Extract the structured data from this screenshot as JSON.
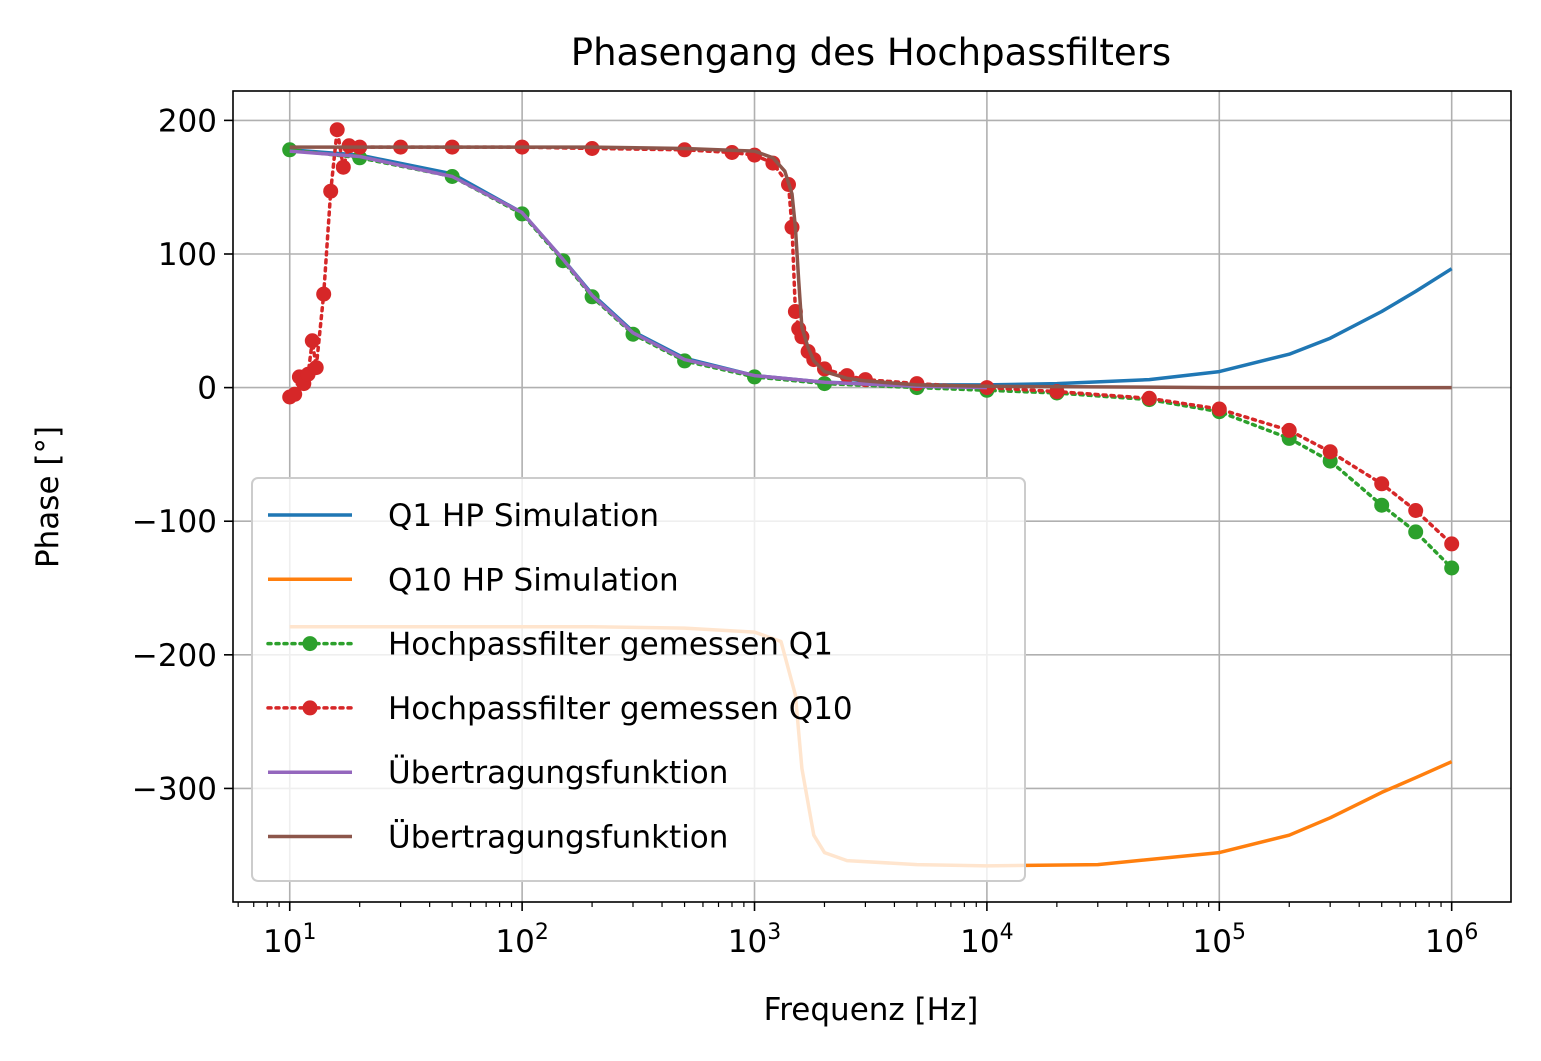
{
  "chart_data": {
    "type": "line",
    "title": "Phasengang des Hochpassfilters",
    "xlabel": "Frequenz [Hz]",
    "ylabel": "Phase [°]",
    "xscale": "log",
    "xlim": [
      5.7,
      1800000
    ],
    "ylim": [
      -385,
      222
    ],
    "xticks": [
      {
        "value": 10,
        "base": "10",
        "exp": "1"
      },
      {
        "value": 100,
        "base": "10",
        "exp": "2"
      },
      {
        "value": 1000,
        "base": "10",
        "exp": "3"
      },
      {
        "value": 10000,
        "base": "10",
        "exp": "4"
      },
      {
        "value": 100000,
        "base": "10",
        "exp": "5"
      },
      {
        "value": 1000000,
        "base": "10",
        "exp": "6"
      }
    ],
    "yticks": [
      {
        "value": 200,
        "label": "200"
      },
      {
        "value": 100,
        "label": "100"
      },
      {
        "value": 0,
        "label": "0"
      },
      {
        "value": -100,
        "label": "−100"
      },
      {
        "value": -200,
        "label": "−200"
      },
      {
        "value": -300,
        "label": "−300"
      }
    ],
    "grid": true,
    "legend_position": "lower-left",
    "series": [
      {
        "name": "Q1 HP Simulation",
        "color": "#1f77b4",
        "style": "solid",
        "x": [
          10,
          20,
          50,
          100,
          150,
          200,
          300,
          500,
          1000,
          2000,
          5000,
          10000,
          20000,
          50000,
          100000,
          200000,
          300000,
          500000,
          700000,
          1000000
        ],
        "y": [
          178,
          174,
          160,
          131,
          96,
          70,
          42,
          22,
          9,
          4,
          2,
          2,
          3,
          6,
          12,
          25,
          37,
          57,
          72,
          89
        ]
      },
      {
        "name": "Q10 HP Simulation",
        "color": "#ff7f0e",
        "style": "solid",
        "x": [
          10,
          50,
          200,
          500,
          1000,
          1300,
          1500,
          1600,
          1800,
          2000,
          2500,
          5000,
          10000,
          30000,
          100000,
          200000,
          300000,
          500000,
          700000,
          1000000
        ],
        "y": [
          -179,
          -179,
          -179,
          -180,
          -183,
          -190,
          -230,
          -285,
          -335,
          -348,
          -354,
          -357,
          -358,
          -357,
          -348,
          -335,
          -322,
          -303,
          -292,
          -280
        ]
      },
      {
        "name": "Hochpassfilter gemessen Q1",
        "color": "#2ca02c",
        "style": "dotted-markers",
        "x": [
          10,
          20,
          50,
          100,
          150,
          200,
          300,
          500,
          1000,
          2000,
          5000,
          10000,
          20000,
          50000,
          100000,
          200000,
          300000,
          500000,
          700000,
          1000000
        ],
        "y": [
          178,
          172,
          158,
          130,
          95,
          68,
          40,
          20,
          8,
          3,
          0,
          -2,
          -4,
          -9,
          -18,
          -38,
          -55,
          -88,
          -108,
          -135
        ]
      },
      {
        "name": "Hochpassfilter gemessen Q10",
        "color": "#d62728",
        "style": "dotted-markers",
        "x": [
          10,
          10.5,
          11,
          11.5,
          12,
          12.5,
          13,
          14,
          15,
          16,
          17,
          18,
          20,
          30,
          50,
          100,
          200,
          500,
          800,
          1000,
          1200,
          1400,
          1450,
          1500,
          1550,
          1600,
          1700,
          1800,
          2000,
          2500,
          3000,
          5000,
          10000,
          20000,
          50000,
          100000,
          200000,
          300000,
          500000,
          700000,
          1000000
        ],
        "y": [
          -7,
          -5,
          8,
          3,
          10,
          35,
          15,
          70,
          147,
          193,
          165,
          181,
          180,
          180,
          180,
          180,
          179,
          178,
          176,
          174,
          168,
          152,
          120,
          57,
          44,
          38,
          27,
          21,
          14,
          9,
          6,
          3,
          0,
          -3,
          -8,
          -16,
          -32,
          -48,
          -72,
          -92,
          -117
        ]
      },
      {
        "name": "Übertragungsfunktion",
        "color": "#9467bd",
        "style": "solid",
        "x": [
          10,
          20,
          50,
          100,
          150,
          200,
          300,
          500,
          1000,
          2000,
          5000,
          10000
        ],
        "y": [
          177,
          173,
          158,
          131,
          96,
          69,
          41,
          21,
          9,
          4,
          1,
          0
        ]
      },
      {
        "name": "Übertragungsfunktion",
        "color": "#8c564b",
        "style": "solid",
        "x": [
          10,
          50,
          200,
          500,
          1000,
          1200,
          1350,
          1450,
          1500,
          1550,
          1600,
          1700,
          1800,
          2000,
          2500,
          3000,
          5000,
          10000,
          100000,
          1000000
        ],
        "y": [
          180,
          180,
          180,
          179,
          177,
          172,
          162,
          145,
          120,
          80,
          45,
          30,
          20,
          12,
          7,
          5,
          2,
          1,
          0,
          0
        ]
      }
    ]
  }
}
